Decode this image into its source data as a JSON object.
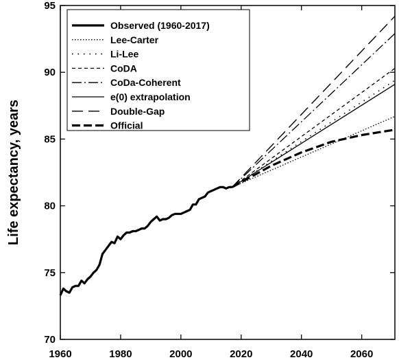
{
  "chart_data": {
    "type": "line",
    "title": "",
    "xlabel": "",
    "ylabel": "Life expectancy, years",
    "xlim": [
      1960,
      2071
    ],
    "ylim": [
      70,
      95
    ],
    "x_ticks": [
      1960,
      1980,
      2000,
      2020,
      2040,
      2060
    ],
    "x_tick_labels": [
      "1960",
      "1980",
      "2000",
      "2020",
      "2040",
      "2060"
    ],
    "y_ticks": [
      70,
      75,
      80,
      85,
      90,
      95
    ],
    "y_tick_labels": [
      "70",
      "75",
      "80",
      "85",
      "90",
      "95"
    ],
    "grid": false,
    "legend_position": "top-left",
    "series": [
      {
        "name": "Observed (1960-2017)",
        "style": "solid-thick",
        "x": [
          1960,
          1961,
          1962,
          1963,
          1964,
          1965,
          1966,
          1967,
          1968,
          1969,
          1970,
          1971,
          1972,
          1973,
          1974,
          1975,
          1976,
          1977,
          1978,
          1979,
          1980,
          1981,
          1982,
          1983,
          1984,
          1985,
          1986,
          1987,
          1988,
          1989,
          1990,
          1991,
          1992,
          1993,
          1994,
          1995,
          1996,
          1997,
          1998,
          1999,
          2000,
          2001,
          2002,
          2003,
          2004,
          2005,
          2006,
          2007,
          2008,
          2009,
          2010,
          2011,
          2012,
          2013,
          2014,
          2015,
          2016,
          2017
        ],
        "y": [
          73.3,
          73.8,
          73.6,
          73.5,
          73.9,
          74.0,
          74.0,
          74.4,
          74.2,
          74.5,
          74.7,
          75.0,
          75.2,
          75.6,
          76.4,
          76.7,
          77.0,
          77.3,
          77.2,
          77.7,
          77.5,
          77.8,
          78.0,
          78.0,
          78.1,
          78.1,
          78.2,
          78.3,
          78.3,
          78.5,
          78.8,
          79.0,
          79.2,
          78.9,
          79.0,
          79.0,
          79.1,
          79.3,
          79.4,
          79.4,
          79.4,
          79.5,
          79.6,
          79.7,
          80.1,
          80.1,
          80.5,
          80.6,
          80.7,
          81.0,
          81.1,
          81.2,
          81.3,
          81.4,
          81.4,
          81.3,
          81.4,
          81.4
        ]
      },
      {
        "name": "Lee-Carter",
        "style": "dotted",
        "x": [
          2017,
          2071
        ],
        "y": [
          81.4,
          86.7
        ]
      },
      {
        "name": "Li-Lee",
        "style": "sparse-dotted",
        "x": [
          2017,
          2071
        ],
        "y": [
          81.4,
          89.4
        ]
      },
      {
        "name": "CoDA",
        "style": "short-dashed",
        "x": [
          2017,
          2071
        ],
        "y": [
          81.4,
          90.3
        ]
      },
      {
        "name": "CoDa-Coherent",
        "style": "dash-dot",
        "x": [
          2017,
          2071
        ],
        "y": [
          81.4,
          92.9
        ]
      },
      {
        "name": "e(0) extrapolation",
        "style": "solid-thin",
        "x": [
          2017,
          2071
        ],
        "y": [
          81.4,
          89.1
        ]
      },
      {
        "name": "Double-Gap",
        "style": "long-dashed",
        "x": [
          2017,
          2071
        ],
        "y": [
          81.4,
          94.2
        ]
      },
      {
        "name": "Official",
        "style": "dashed-thick",
        "x": [
          2017,
          2030,
          2040,
          2050,
          2060,
          2071
        ],
        "y": [
          81.4,
          83.0,
          84.0,
          84.8,
          85.3,
          85.7
        ]
      }
    ]
  }
}
